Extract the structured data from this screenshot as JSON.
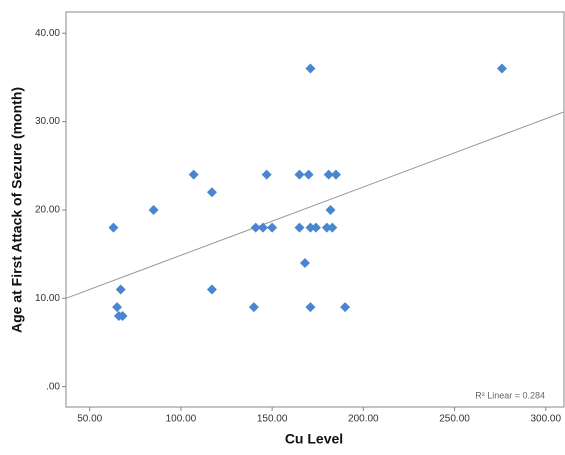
{
  "chart_data": {
    "type": "scatter",
    "x_label": "Cu Level",
    "y_label": "Age at First Attack of Sezure (month)",
    "annotation": "R² Linear = 0.284",
    "color": "#4a86cf",
    "x": [
      63,
      85,
      107,
      117,
      117,
      67,
      65,
      66,
      68,
      141,
      145,
      150,
      147,
      140,
      165,
      170,
      171,
      165,
      171,
      174,
      168,
      171,
      181,
      185,
      182,
      180,
      183,
      190,
      276
    ],
    "values": [
      18,
      20,
      24,
      22,
      11,
      11,
      9,
      8,
      8,
      18,
      18,
      18,
      24,
      9,
      24,
      24,
      36,
      18,
      18,
      18,
      14,
      9,
      24,
      24,
      20,
      18,
      18,
      9,
      36
    ],
    "fit_line": {
      "x": [
        37,
        310
      ],
      "y": [
        10,
        31.1
      ],
      "color": "#999999"
    },
    "xlim": [
      37,
      310
    ],
    "ylim": [
      -2.3,
      42.4
    ],
    "xticks": [
      {
        "value": 50,
        "label": "50.00"
      },
      {
        "value": 100,
        "label": "100.00"
      },
      {
        "value": 150,
        "label": "150.00"
      },
      {
        "value": 200,
        "label": "200.00"
      },
      {
        "value": 250,
        "label": "250.00"
      },
      {
        "value": 300,
        "label": "300.00"
      }
    ],
    "yticks": [
      {
        "value": 0,
        "label": ".00"
      },
      {
        "value": 10,
        "label": "10.00"
      },
      {
        "value": 20,
        "label": "20.00"
      },
      {
        "value": 30,
        "label": "30.00"
      },
      {
        "value": 40,
        "label": "40.00"
      }
    ]
  }
}
